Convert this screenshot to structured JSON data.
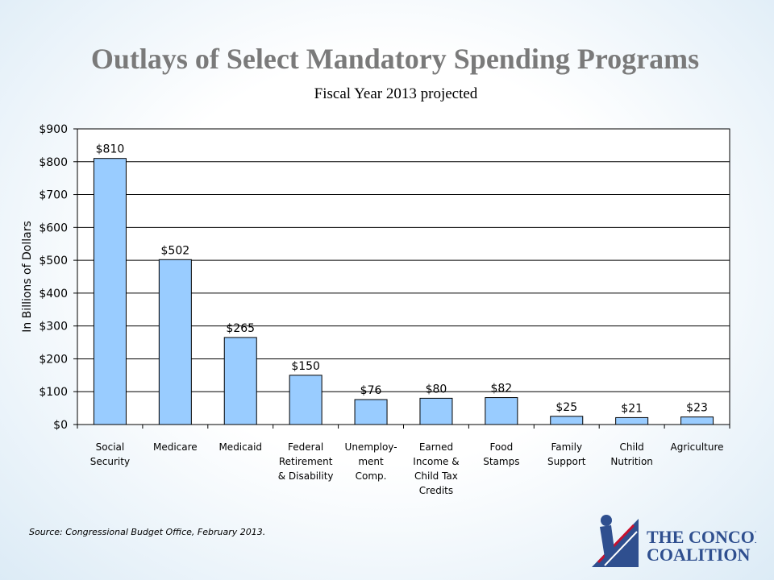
{
  "chart_data": {
    "type": "bar",
    "title": "Outlays of Select Mandatory Spending Programs",
    "subtitle": "Fiscal Year 2013 projected",
    "ylabel": "In Billions of Dollars",
    "xlabel": "",
    "ylim": [
      0,
      900
    ],
    "yticks": [
      0,
      100,
      200,
      300,
      400,
      500,
      600,
      700,
      800,
      900
    ],
    "ytick_labels": [
      "$0",
      "$100",
      "$200",
      "$300",
      "$400",
      "$500",
      "$600",
      "$700",
      "$800",
      "$900"
    ],
    "grid": true,
    "bar_color": "#99ccff",
    "categories": [
      [
        "Social",
        "Security"
      ],
      [
        "Medicare"
      ],
      [
        "Medicaid"
      ],
      [
        "Federal",
        "Retirement",
        "& Disability"
      ],
      [
        "Unemploy-",
        "ment",
        "Comp."
      ],
      [
        "Earned",
        "Income &",
        "Child Tax",
        "Credits"
      ],
      [
        "Food",
        "Stamps"
      ],
      [
        "Family",
        "Support"
      ],
      [
        "Child",
        "Nutrition"
      ],
      [
        "Agriculture"
      ]
    ],
    "values": [
      810,
      502,
      265,
      150,
      76,
      80,
      82,
      25,
      21,
      23
    ],
    "data_labels": [
      "$810",
      "$502",
      "$265",
      "$150",
      "$76",
      "$80",
      "$82",
      "$25",
      "$21",
      "$23"
    ]
  },
  "source": "Source: Congressional Budget Office, February 2013.",
  "logo": {
    "line1": "The Concord",
    "line2": "Coalition",
    "color": "#2f4f8f",
    "accent": "#c8102e"
  }
}
